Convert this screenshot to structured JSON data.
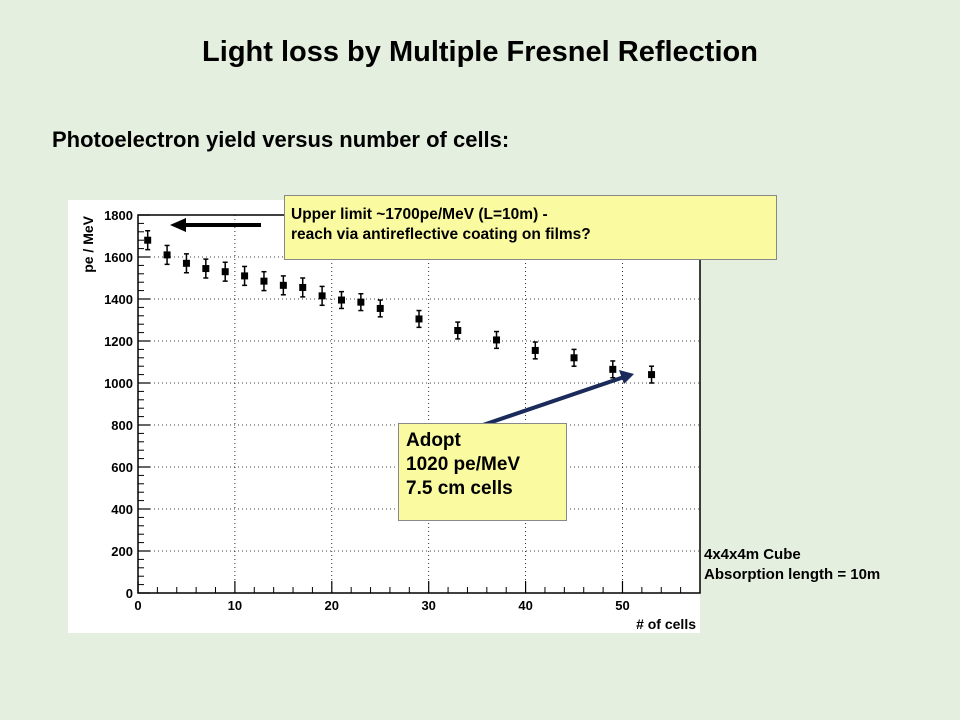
{
  "slide": {
    "title": "Light loss by Multiple Fresnel Reflection",
    "subtitle": "Photoelectron yield versus number of cells:"
  },
  "callouts": {
    "upper_line1": "Upper limit ~1700pe/MeV (L=10m) -",
    "upper_line2": "reach via antireflective coating on films?",
    "adopt_line1": "Adopt",
    "adopt_line2": "1020 pe/MeV",
    "adopt_line3": "7.5 cm cells"
  },
  "note": {
    "line1": "4x4x4m Cube",
    "line2": "Absorption length = 10m"
  },
  "colors": {
    "background": "#e4efdf",
    "callout_fill": "#fafaa0",
    "marker": "#000000"
  },
  "chart_data": {
    "type": "scatter",
    "xlabel": "# of cells",
    "ylabel": "pe / MeV",
    "xlim": [
      0,
      58
    ],
    "ylim": [
      0,
      1800
    ],
    "x_ticks": [
      0,
      10,
      20,
      30,
      40,
      50
    ],
    "y_ticks": [
      0,
      200,
      400,
      600,
      800,
      1000,
      1200,
      1400,
      1600,
      1800
    ],
    "grid": true,
    "points": [
      {
        "x": 1,
        "y": 1680,
        "err": 45
      },
      {
        "x": 3,
        "y": 1610,
        "err": 45
      },
      {
        "x": 5,
        "y": 1570,
        "err": 45
      },
      {
        "x": 7,
        "y": 1545,
        "err": 45
      },
      {
        "x": 9,
        "y": 1530,
        "err": 45
      },
      {
        "x": 11,
        "y": 1510,
        "err": 45
      },
      {
        "x": 13,
        "y": 1485,
        "err": 45
      },
      {
        "x": 15,
        "y": 1465,
        "err": 45
      },
      {
        "x": 17,
        "y": 1455,
        "err": 45
      },
      {
        "x": 19,
        "y": 1415,
        "err": 45
      },
      {
        "x": 21,
        "y": 1395,
        "err": 40
      },
      {
        "x": 23,
        "y": 1385,
        "err": 40
      },
      {
        "x": 25,
        "y": 1355,
        "err": 40
      },
      {
        "x": 29,
        "y": 1305,
        "err": 40
      },
      {
        "x": 33,
        "y": 1250,
        "err": 40
      },
      {
        "x": 37,
        "y": 1205,
        "err": 40
      },
      {
        "x": 41,
        "y": 1155,
        "err": 40
      },
      {
        "x": 45,
        "y": 1120,
        "err": 40
      },
      {
        "x": 49,
        "y": 1065,
        "err": 40
      },
      {
        "x": 53,
        "y": 1040,
        "err": 40
      }
    ]
  }
}
